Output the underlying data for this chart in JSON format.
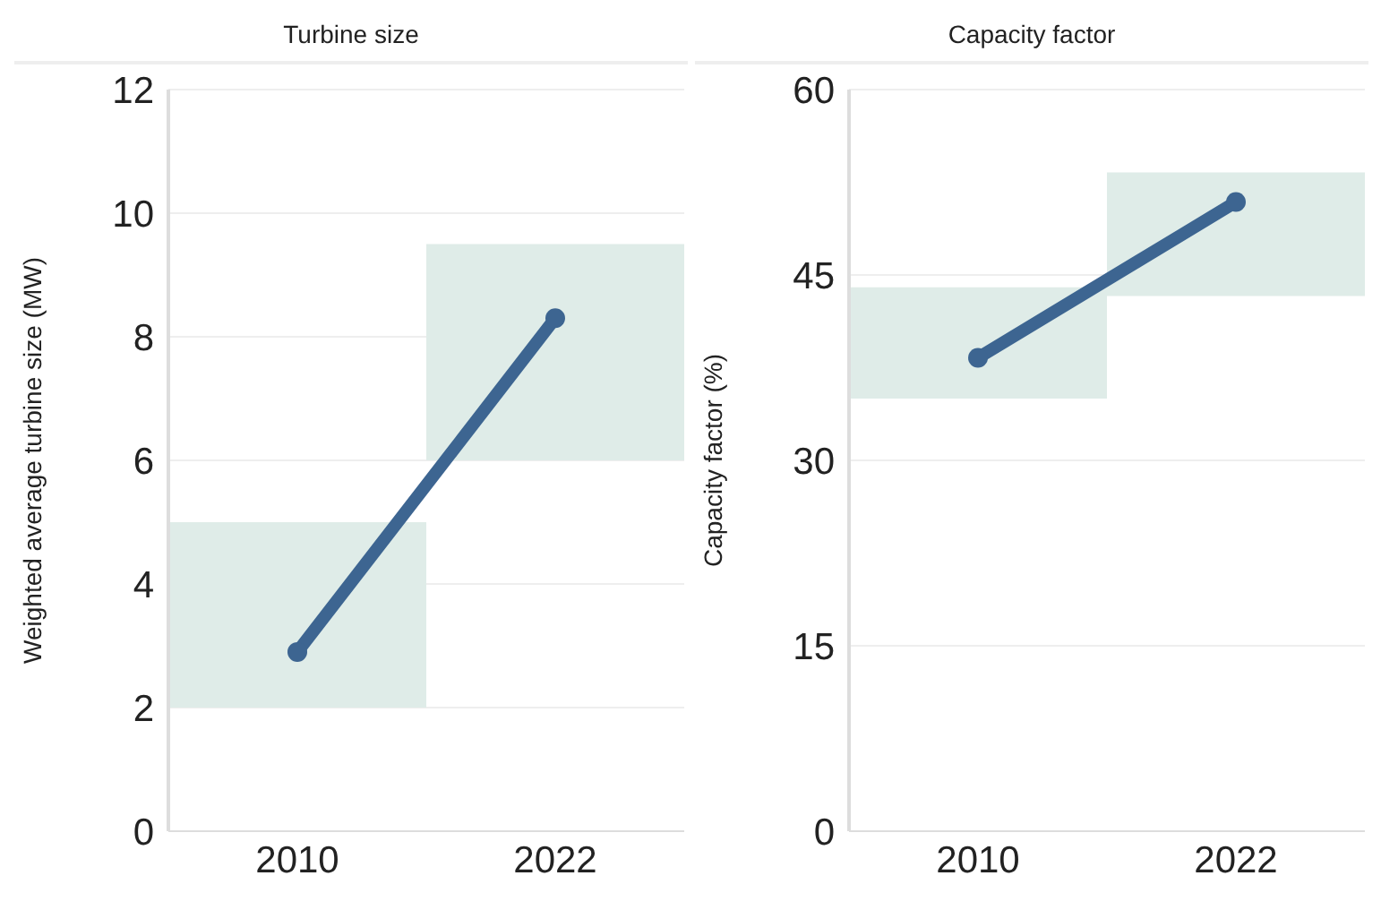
{
  "chart_data": [
    {
      "type": "line",
      "title": "Turbine size",
      "ylabel": "Weighted average turbine size (MW)",
      "categories": [
        "2010",
        "2022"
      ],
      "ylim": [
        0,
        12
      ],
      "yticks": [
        0,
        2,
        4,
        6,
        8,
        10,
        12
      ],
      "grid": "y",
      "marker": "circle",
      "series": [
        {
          "type": "bar",
          "color": "#dfece8",
          "base": [
            2.0,
            6.0
          ],
          "values": [
            3.0,
            3.5
          ]
        },
        {
          "color": "#3d6591",
          "values": [
            2.9,
            8.3
          ]
        }
      ]
    },
    {
      "type": "line",
      "title": "Capacity factor",
      "ylabel": "Capacity factor (%)",
      "categories": [
        "2010",
        "2022"
      ],
      "ylim": [
        0,
        60
      ],
      "yticks": [
        0,
        15,
        30,
        45,
        60
      ],
      "grid": "y",
      "marker": "circle",
      "series": [
        {
          "type": "bar",
          "color": "#dfece8",
          "base": [
            35.0,
            43.3
          ],
          "values": [
            9.0,
            10.0
          ]
        },
        {
          "color": "#3d6591",
          "values": [
            38.3,
            50.9
          ]
        }
      ]
    }
  ]
}
